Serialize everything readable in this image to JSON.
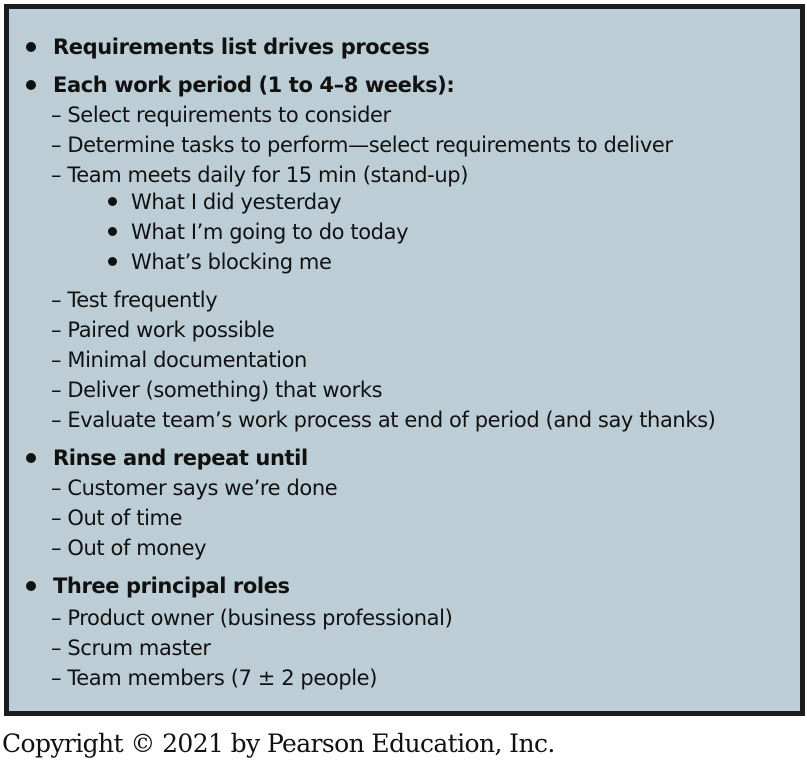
{
  "slide": {
    "sections": [
      {
        "heading": "Requirements list drives process",
        "items": []
      },
      {
        "heading": "Each work period (1 to 4–8 weeks):",
        "items": [
          "– Select requirements to consider",
          "– Determine tasks to perform—select requirements to deliver",
          "– Team meets daily for 15 min (stand-up)"
        ],
        "subitems": [
          "What I did yesterday",
          "What I’m going to do today",
          "What’s blocking me"
        ],
        "items_after": [
          "– Test frequently",
          "– Paired work possible",
          "– Minimal documentation",
          "– Deliver (something) that works",
          "– Evaluate team’s work process at end of period (and say thanks)"
        ]
      },
      {
        "heading": "Rinse and repeat until",
        "items": [
          "– Customer says we’re done",
          "– Out of time",
          "– Out of money"
        ]
      },
      {
        "heading": "Three principal roles",
        "items": [
          "– Product owner (business professional)",
          "– Scrum master",
          "– Team members (7 ± 2 people)"
        ]
      }
    ]
  },
  "footer": {
    "copyright": "Copyright © 2021 by Pearson Education, Inc."
  },
  "colors": {
    "panel_bg": "#bccdd6",
    "border": "#1c1c1c",
    "text": "#111111"
  }
}
